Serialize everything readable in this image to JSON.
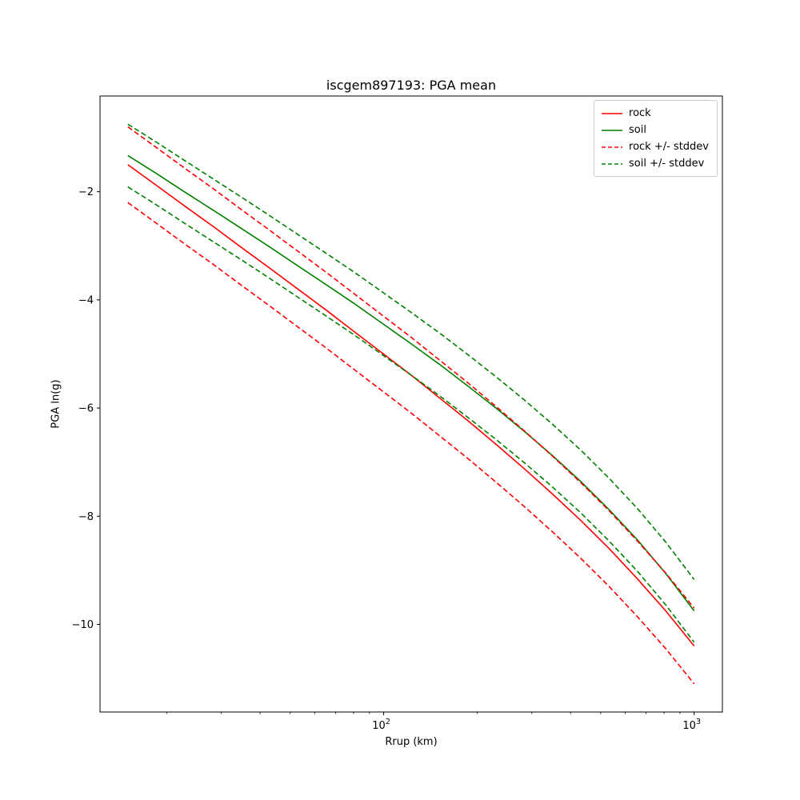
{
  "chart_data": {
    "type": "line",
    "title": "iscgem897193: PGA mean",
    "xlabel": "Rrup (km)",
    "ylabel": "PGA ln(g)",
    "xscale": "log",
    "xlim": [
      12.2,
      1233
    ],
    "ylim": [
      -11.62,
      -0.23
    ],
    "grid": false,
    "legend_position": "upper right",
    "x": [
      15,
      18.5,
      22.8,
      28.2,
      34.8,
      42.9,
      52.9,
      65.3,
      80.5,
      99.3,
      122.5,
      151.1,
      186.4,
      230,
      283.7,
      350,
      431.7,
      532.5,
      656.9,
      810.3,
      1000
    ],
    "series": [
      {
        "id": "rock",
        "name": "rock",
        "color": "#ff0000",
        "dashed": false,
        "values": [
          -1.5,
          -1.88,
          -2.26,
          -2.64,
          -3.03,
          -3.41,
          -3.8,
          -4.19,
          -4.59,
          -4.99,
          -5.39,
          -5.81,
          -6.23,
          -6.67,
          -7.12,
          -7.59,
          -8.08,
          -8.6,
          -9.16,
          -9.75,
          -10.4
        ]
      },
      {
        "id": "soil",
        "name": "soil",
        "color": "#008000",
        "dashed": false,
        "values": [
          -1.33,
          -1.66,
          -2.0,
          -2.34,
          -2.68,
          -3.02,
          -3.37,
          -3.72,
          -4.07,
          -4.44,
          -4.81,
          -5.19,
          -5.59,
          -6.0,
          -6.43,
          -6.88,
          -7.36,
          -7.88,
          -8.44,
          -9.06,
          -9.75
        ]
      },
      {
        "id": "rock-plus-stddev",
        "name": "rock + stddev",
        "color": "#ff0000",
        "dashed": true,
        "values": [
          -0.8,
          -1.18,
          -1.56,
          -1.94,
          -2.33,
          -2.71,
          -3.1,
          -3.49,
          -3.89,
          -4.29,
          -4.69,
          -5.11,
          -5.53,
          -5.97,
          -6.42,
          -6.89,
          -7.38,
          -7.9,
          -8.46,
          -9.05,
          -9.7
        ]
      },
      {
        "id": "rock-minus-stddev",
        "name": "rock - stddev",
        "color": "#ff0000",
        "dashed": true,
        "values": [
          -2.2,
          -2.58,
          -2.96,
          -3.34,
          -3.73,
          -4.11,
          -4.5,
          -4.89,
          -5.29,
          -5.69,
          -6.09,
          -6.51,
          -6.93,
          -7.37,
          -7.82,
          -8.29,
          -8.78,
          -9.3,
          -9.86,
          -10.45,
          -11.1
        ]
      },
      {
        "id": "soil-plus-stddev",
        "name": "soil + stddev",
        "color": "#008000",
        "dashed": true,
        "values": [
          -0.75,
          -1.08,
          -1.42,
          -1.76,
          -2.1,
          -2.44,
          -2.79,
          -3.14,
          -3.49,
          -3.86,
          -4.23,
          -4.61,
          -5.01,
          -5.42,
          -5.85,
          -6.3,
          -6.78,
          -7.3,
          -7.86,
          -8.48,
          -9.17
        ]
      },
      {
        "id": "soil-minus-stddev",
        "name": "soil - stddev",
        "color": "#008000",
        "dashed": true,
        "values": [
          -1.91,
          -2.24,
          -2.58,
          -2.92,
          -3.26,
          -3.6,
          -3.95,
          -4.3,
          -4.65,
          -5.02,
          -5.39,
          -5.77,
          -6.17,
          -6.58,
          -7.01,
          -7.46,
          -7.94,
          -8.46,
          -9.02,
          -9.64,
          -10.33
        ]
      }
    ],
    "yticks": [
      {
        "value": -2,
        "label": "−2"
      },
      {
        "value": -4,
        "label": "−4"
      },
      {
        "value": -6,
        "label": "−6"
      },
      {
        "value": -8,
        "label": "−8"
      },
      {
        "value": -10,
        "label": "−10"
      }
    ],
    "xticks": [
      {
        "value": 100,
        "base": "10",
        "exp": "2"
      },
      {
        "value": 1000,
        "base": "10",
        "exp": "3"
      }
    ],
    "legend": [
      {
        "label": "rock",
        "color": "#ff0000",
        "dashed": false
      },
      {
        "label": "soil",
        "color": "#008000",
        "dashed": false
      },
      {
        "label": "rock +/- stddev",
        "color": "#ff0000",
        "dashed": true
      },
      {
        "label": "soil +/- stddev",
        "color": "#008000",
        "dashed": true
      }
    ],
    "colors": {
      "rock": "#ff0000",
      "soil": "#008000",
      "axis": "#000000",
      "legend_border": "#cccccc"
    }
  }
}
